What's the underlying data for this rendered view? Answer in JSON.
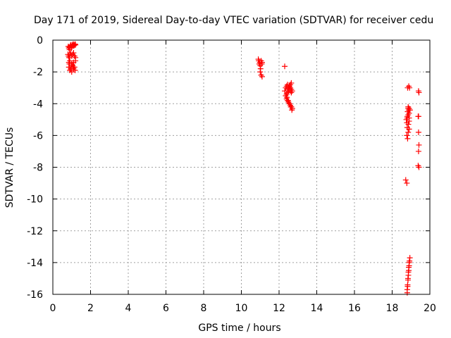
{
  "chart_data": {
    "type": "scatter",
    "title": "Day 171 of 2019, Sidereal Day-to-day VTEC variation (SDTVAR) for receiver cedu",
    "xlabel": "GPS time / hours",
    "ylabel": "SDTVAR / TECUs",
    "xlim": [
      0,
      20
    ],
    "ylim": [
      -16,
      0
    ],
    "xticks": [
      0,
      2,
      4,
      6,
      8,
      10,
      12,
      14,
      16,
      18,
      20
    ],
    "yticks": [
      0,
      -2,
      -4,
      -6,
      -8,
      -10,
      -12,
      -14,
      -16
    ],
    "grid": true,
    "marker": "+",
    "color": "#ff0000",
    "series": [
      {
        "name": "SDTVAR",
        "x": [
          0.82,
          0.85,
          0.88,
          0.9,
          0.93,
          0.95,
          0.98,
          1.0,
          1.02,
          1.05,
          1.08,
          1.1,
          1.12,
          1.15,
          1.18,
          1.2,
          0.8,
          0.83,
          0.86,
          0.9,
          0.95,
          1.0,
          1.05,
          1.1,
          1.15,
          1.2,
          0.85,
          0.9,
          1.0,
          1.1,
          1.2,
          0.85,
          0.95,
          1.05,
          1.15,
          0.9,
          1.0,
          1.1,
          0.88,
          0.98,
          1.08,
          1.18,
          10.9,
          10.92,
          10.95,
          10.98,
          11.0,
          11.02,
          11.05,
          11.08,
          11.1,
          11.0,
          11.05,
          11.1,
          12.3,
          12.3,
          12.35,
          12.4,
          12.45,
          12.5,
          12.55,
          12.6,
          12.65,
          12.4,
          12.45,
          12.5,
          12.55,
          12.6,
          12.65,
          12.35,
          12.4,
          12.45,
          12.5,
          12.55,
          12.6,
          12.65,
          12.7,
          12.42,
          12.48,
          12.55,
          12.62,
          12.68,
          12.45,
          12.5,
          12.55,
          12.6,
          12.65,
          12.7,
          18.75,
          18.78,
          18.8,
          18.82,
          18.85,
          18.88,
          18.9,
          18.8,
          18.85,
          18.9,
          18.78,
          18.82,
          18.86,
          18.9,
          18.8,
          18.85,
          18.9,
          18.82,
          18.88,
          18.92,
          18.85,
          18.9,
          18.95,
          18.72,
          18.78,
          18.8,
          18.82,
          18.84,
          18.86,
          18.88,
          18.9,
          18.92,
          18.94,
          18.8,
          18.82,
          18.84,
          18.86,
          18.88,
          18.9,
          19.4,
          19.42,
          19.38,
          19.4,
          19.42,
          19.4,
          19.38,
          19.42,
          19.4
        ],
        "y": [
          -0.4,
          -0.5,
          -0.6,
          -0.45,
          -0.35,
          -0.3,
          -0.5,
          -0.4,
          -0.3,
          -0.35,
          -0.25,
          -0.3,
          -0.35,
          -0.3,
          -0.25,
          -0.3,
          -0.9,
          -1.0,
          -1.1,
          -0.9,
          -0.8,
          -1.0,
          -0.9,
          -0.8,
          -1.0,
          -1.1,
          -1.4,
          -1.3,
          -1.5,
          -1.4,
          -1.3,
          -1.7,
          -1.8,
          -1.6,
          -1.7,
          -1.9,
          -2.0,
          -1.8,
          -1.5,
          -1.6,
          -1.7,
          -1.9,
          -1.2,
          -1.3,
          -1.5,
          -1.4,
          -1.6,
          -1.8,
          -1.3,
          -1.5,
          -1.4,
          -2.0,
          -2.2,
          -2.3,
          -1.65,
          -3.2,
          -3.0,
          -2.9,
          -2.8,
          -3.0,
          -2.9,
          -2.8,
          -2.7,
          -3.4,
          -3.3,
          -3.2,
          -3.1,
          -3.2,
          -3.3,
          -3.5,
          -3.7,
          -3.8,
          -3.9,
          -4.0,
          -4.1,
          -4.2,
          -4.3,
          -3.6,
          -3.8,
          -4.0,
          -4.2,
          -4.4,
          -3.1,
          -3.0,
          -2.9,
          -3.0,
          -3.1,
          -3.2,
          -5.0,
          -5.2,
          -4.9,
          -4.5,
          -4.3,
          -4.4,
          -4.6,
          -5.5,
          -5.8,
          -5.6,
          -6.0,
          -6.2,
          -5.3,
          -5.1,
          -4.8,
          -4.7,
          -4.9,
          -3.0,
          -2.9,
          -3.0,
          -4.2,
          -4.3,
          -4.4,
          -8.8,
          -9.0,
          -15.7,
          -15.4,
          -15.1,
          -14.8,
          -14.5,
          -14.2,
          -13.9,
          -13.7,
          -15.9,
          -15.5,
          -15.0,
          -14.6,
          -14.3,
          -14.0,
          -3.2,
          -3.3,
          -4.8,
          -5.8,
          -6.6,
          -7.0,
          -7.9,
          -8.0,
          -4.8
        ]
      }
    ]
  }
}
